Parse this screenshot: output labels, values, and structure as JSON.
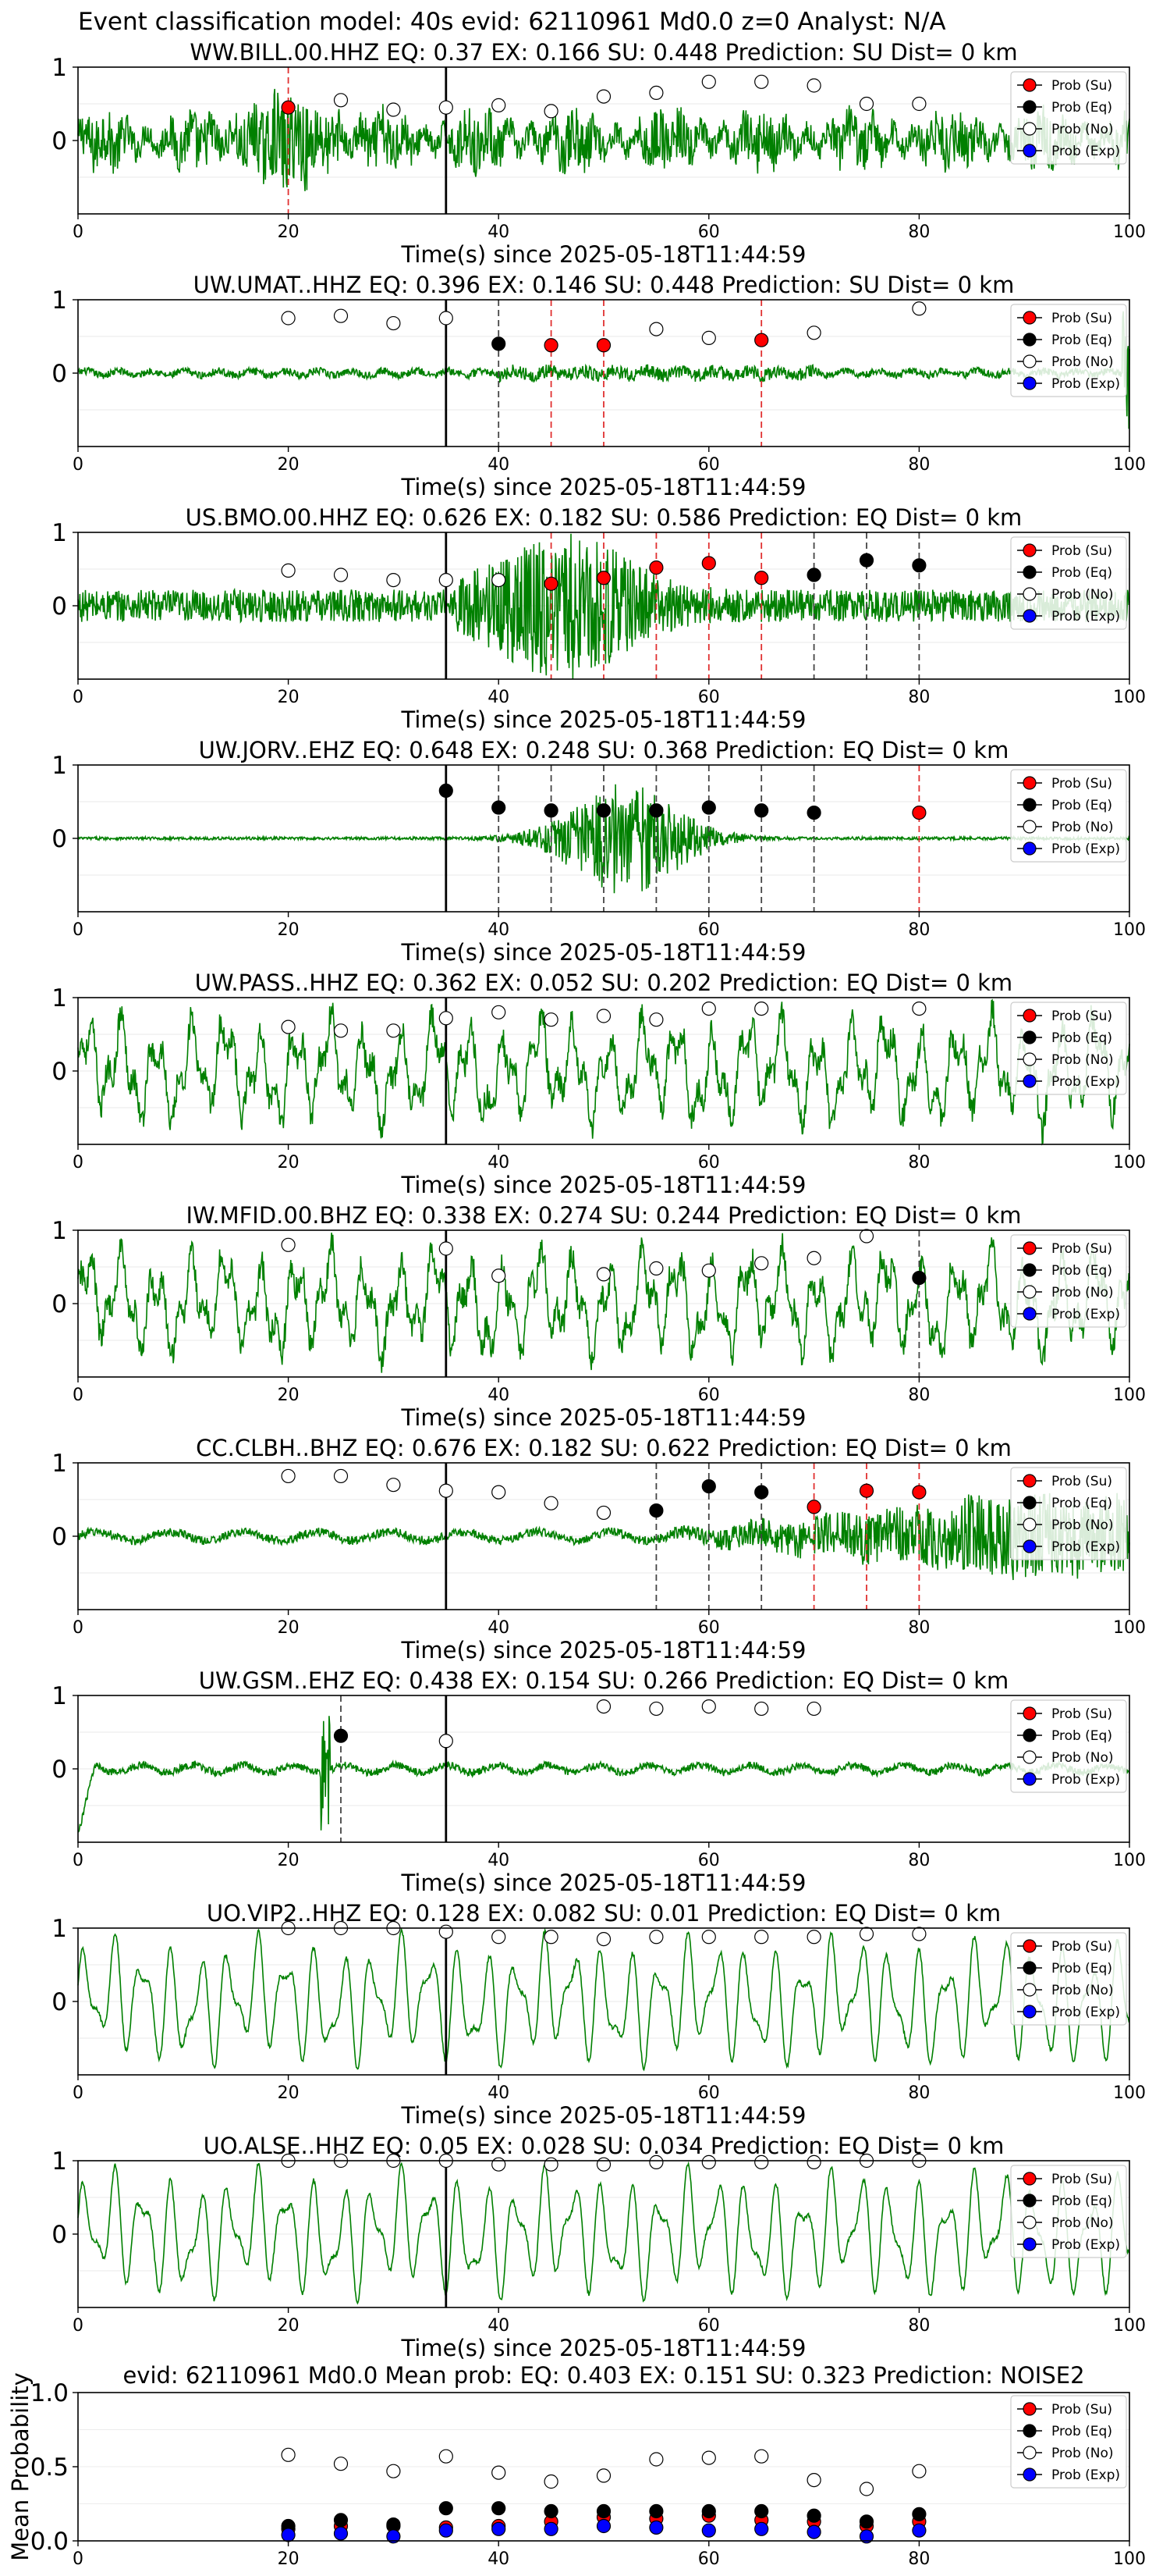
{
  "suptitle": "Event classification model: 40s evid: 62110961 Md0.0 z=0 Analyst: N/A",
  "xlabel": "Time(s) since 2025-05-18T11:44:59",
  "legend": [
    "Prob (Su)",
    "Prob (Eq)",
    "Prob (No)",
    "Prob (Exp)"
  ],
  "colors": {
    "waveform": "#008000",
    "su": "#ff0000",
    "eq": "#000000",
    "no": "#ffffff",
    "exp": "#0000ff"
  },
  "chart_data": [
    {
      "type": "line",
      "title": "WW.BILL.00.HHZ   EQ: 0.37  EX: 0.166  SU: 0.448   Prediction: SU    Dist= 0 km",
      "xlim": [
        0,
        100
      ],
      "ylim": [
        -1,
        1
      ],
      "xticks": [
        0,
        20,
        40,
        60,
        80,
        100
      ],
      "yticks": [
        0,
        1
      ],
      "arrival_x": 35,
      "wave": "noisy",
      "markers": [
        {
          "x": 20,
          "y": 0.45,
          "c": "su"
        },
        {
          "x": 25,
          "y": 0.55,
          "c": "no"
        },
        {
          "x": 30,
          "y": 0.42,
          "c": "no"
        },
        {
          "x": 35,
          "y": 0.45,
          "c": "no"
        },
        {
          "x": 40,
          "y": 0.48,
          "c": "no"
        },
        {
          "x": 45,
          "y": 0.4,
          "c": "no"
        },
        {
          "x": 50,
          "y": 0.6,
          "c": "no"
        },
        {
          "x": 55,
          "y": 0.65,
          "c": "no"
        },
        {
          "x": 60,
          "y": 0.8,
          "c": "no"
        },
        {
          "x": 65,
          "y": 0.8,
          "c": "no"
        },
        {
          "x": 70,
          "y": 0.75,
          "c": "no"
        },
        {
          "x": 75,
          "y": 0.5,
          "c": "no"
        },
        {
          "x": 80,
          "y": 0.5,
          "c": "no"
        }
      ],
      "vlines": [
        {
          "x": 20,
          "c": "su"
        }
      ]
    },
    {
      "type": "line",
      "title": "UW.UMAT..HHZ   EQ: 0.396  EX: 0.146  SU: 0.448   Prediction: SU    Dist= 0 km",
      "xlim": [
        0,
        100
      ],
      "ylim": [
        -1,
        1
      ],
      "xticks": [
        0,
        20,
        40,
        60,
        80,
        100
      ],
      "yticks": [
        0,
        1
      ],
      "arrival_x": 35,
      "wave": "quiet",
      "markers": [
        {
          "x": 20,
          "y": 0.75,
          "c": "no"
        },
        {
          "x": 25,
          "y": 0.78,
          "c": "no"
        },
        {
          "x": 30,
          "y": 0.68,
          "c": "no"
        },
        {
          "x": 35,
          "y": 0.75,
          "c": "no"
        },
        {
          "x": 40,
          "y": 0.4,
          "c": "eq"
        },
        {
          "x": 45,
          "y": 0.38,
          "c": "su"
        },
        {
          "x": 50,
          "y": 0.38,
          "c": "su"
        },
        {
          "x": 55,
          "y": 0.6,
          "c": "no"
        },
        {
          "x": 60,
          "y": 0.48,
          "c": "no"
        },
        {
          "x": 65,
          "y": 0.45,
          "c": "su"
        },
        {
          "x": 70,
          "y": 0.55,
          "c": "no"
        },
        {
          "x": 80,
          "y": 0.88,
          "c": "no"
        }
      ],
      "vlines": [
        {
          "x": 40,
          "c": "eq"
        },
        {
          "x": 45,
          "c": "su"
        },
        {
          "x": 50,
          "c": "su"
        },
        {
          "x": 65,
          "c": "su"
        }
      ]
    },
    {
      "type": "line",
      "title": "US.BMO.00.HHZ   EQ: 0.626  EX: 0.182  SU: 0.586   Prediction: EQ    Dist= 0 km",
      "xlim": [
        0,
        100
      ],
      "ylim": [
        -1,
        1
      ],
      "xticks": [
        0,
        20,
        40,
        60,
        80,
        100
      ],
      "yticks": [
        0,
        1
      ],
      "arrival_x": 35,
      "wave": "event_bmo",
      "markers": [
        {
          "x": 20,
          "y": 0.48,
          "c": "no"
        },
        {
          "x": 25,
          "y": 0.42,
          "c": "no"
        },
        {
          "x": 30,
          "y": 0.35,
          "c": "no"
        },
        {
          "x": 35,
          "y": 0.35,
          "c": "no"
        },
        {
          "x": 40,
          "y": 0.35,
          "c": "no"
        },
        {
          "x": 45,
          "y": 0.3,
          "c": "su"
        },
        {
          "x": 50,
          "y": 0.38,
          "c": "su"
        },
        {
          "x": 55,
          "y": 0.52,
          "c": "su"
        },
        {
          "x": 60,
          "y": 0.58,
          "c": "su"
        },
        {
          "x": 65,
          "y": 0.38,
          "c": "su"
        },
        {
          "x": 70,
          "y": 0.42,
          "c": "eq"
        },
        {
          "x": 75,
          "y": 0.62,
          "c": "eq"
        },
        {
          "x": 80,
          "y": 0.55,
          "c": "eq"
        }
      ],
      "vlines": [
        {
          "x": 45,
          "c": "su"
        },
        {
          "x": 50,
          "c": "su"
        },
        {
          "x": 55,
          "c": "su"
        },
        {
          "x": 60,
          "c": "su"
        },
        {
          "x": 65,
          "c": "su"
        },
        {
          "x": 70,
          "c": "eq"
        },
        {
          "x": 75,
          "c": "eq"
        },
        {
          "x": 80,
          "c": "eq"
        }
      ]
    },
    {
      "type": "line",
      "title": "UW.JORV..EHZ   EQ: 0.648  EX: 0.248  SU: 0.368   Prediction: EQ    Dist= 0 km",
      "xlim": [
        0,
        100
      ],
      "ylim": [
        -1,
        1
      ],
      "xticks": [
        0,
        20,
        40,
        60,
        80,
        100
      ],
      "yticks": [
        0,
        1
      ],
      "arrival_x": 35,
      "wave": "event_jorv",
      "markers": [
        {
          "x": 35,
          "y": 0.65,
          "c": "eq"
        },
        {
          "x": 40,
          "y": 0.42,
          "c": "eq"
        },
        {
          "x": 45,
          "y": 0.38,
          "c": "eq"
        },
        {
          "x": 50,
          "y": 0.38,
          "c": "eq"
        },
        {
          "x": 55,
          "y": 0.38,
          "c": "eq"
        },
        {
          "x": 60,
          "y": 0.42,
          "c": "eq"
        },
        {
          "x": 65,
          "y": 0.38,
          "c": "eq"
        },
        {
          "x": 70,
          "y": 0.35,
          "c": "eq"
        },
        {
          "x": 80,
          "y": 0.35,
          "c": "su"
        }
      ],
      "vlines": [
        {
          "x": 40,
          "c": "eq"
        },
        {
          "x": 45,
          "c": "eq"
        },
        {
          "x": 50,
          "c": "eq"
        },
        {
          "x": 55,
          "c": "eq"
        },
        {
          "x": 60,
          "c": "eq"
        },
        {
          "x": 65,
          "c": "eq"
        },
        {
          "x": 70,
          "c": "eq"
        },
        {
          "x": 80,
          "c": "su"
        }
      ]
    },
    {
      "type": "line",
      "title": "UW.PASS..HHZ   EQ: 0.362  EX: 0.052  SU: 0.202   Prediction: EQ    Dist= 0 km",
      "xlim": [
        0,
        100
      ],
      "ylim": [
        -1,
        1
      ],
      "xticks": [
        0,
        20,
        40,
        60,
        80,
        100
      ],
      "yticks": [
        0,
        1
      ],
      "arrival_x": 35,
      "wave": "wavy",
      "markers": [
        {
          "x": 20,
          "y": 0.6,
          "c": "no"
        },
        {
          "x": 25,
          "y": 0.55,
          "c": "no"
        },
        {
          "x": 30,
          "y": 0.55,
          "c": "no"
        },
        {
          "x": 35,
          "y": 0.72,
          "c": "no"
        },
        {
          "x": 40,
          "y": 0.8,
          "c": "no"
        },
        {
          "x": 45,
          "y": 0.7,
          "c": "no"
        },
        {
          "x": 50,
          "y": 0.75,
          "c": "no"
        },
        {
          "x": 55,
          "y": 0.7,
          "c": "no"
        },
        {
          "x": 60,
          "y": 0.85,
          "c": "no"
        },
        {
          "x": 65,
          "y": 0.85,
          "c": "no"
        },
        {
          "x": 80,
          "y": 0.85,
          "c": "no"
        }
      ],
      "vlines": []
    },
    {
      "type": "line",
      "title": "IW.MFID.00.BHZ   EQ: 0.338  EX: 0.274  SU: 0.244   Prediction: EQ    Dist= 0 km",
      "xlim": [
        0,
        100
      ],
      "ylim": [
        -1,
        1
      ],
      "xticks": [
        0,
        20,
        40,
        60,
        80,
        100
      ],
      "yticks": [
        0,
        1
      ],
      "arrival_x": 35,
      "wave": "wavy",
      "markers": [
        {
          "x": 20,
          "y": 0.8,
          "c": "no"
        },
        {
          "x": 35,
          "y": 0.75,
          "c": "no"
        },
        {
          "x": 40,
          "y": 0.38,
          "c": "no"
        },
        {
          "x": 50,
          "y": 0.4,
          "c": "no"
        },
        {
          "x": 55,
          "y": 0.48,
          "c": "no"
        },
        {
          "x": 60,
          "y": 0.45,
          "c": "no"
        },
        {
          "x": 65,
          "y": 0.55,
          "c": "no"
        },
        {
          "x": 70,
          "y": 0.62,
          "c": "no"
        },
        {
          "x": 75,
          "y": 0.92,
          "c": "no"
        },
        {
          "x": 80,
          "y": 0.35,
          "c": "eq"
        }
      ],
      "vlines": [
        {
          "x": 80,
          "c": "eq"
        }
      ]
    },
    {
      "type": "line",
      "title": "CC.CLBH..BHZ   EQ: 0.676  EX: 0.182  SU: 0.622   Prediction: EQ    Dist= 0 km",
      "xlim": [
        0,
        100
      ],
      "ylim": [
        -1,
        1
      ],
      "xticks": [
        0,
        20,
        40,
        60,
        80,
        100
      ],
      "yticks": [
        0,
        1
      ],
      "arrival_x": 35,
      "wave": "event_clbh",
      "markers": [
        {
          "x": 20,
          "y": 0.82,
          "c": "no"
        },
        {
          "x": 25,
          "y": 0.82,
          "c": "no"
        },
        {
          "x": 30,
          "y": 0.7,
          "c": "no"
        },
        {
          "x": 35,
          "y": 0.62,
          "c": "no"
        },
        {
          "x": 40,
          "y": 0.6,
          "c": "no"
        },
        {
          "x": 45,
          "y": 0.45,
          "c": "no"
        },
        {
          "x": 50,
          "y": 0.32,
          "c": "no"
        },
        {
          "x": 55,
          "y": 0.35,
          "c": "eq"
        },
        {
          "x": 60,
          "y": 0.68,
          "c": "eq"
        },
        {
          "x": 65,
          "y": 0.6,
          "c": "eq"
        },
        {
          "x": 70,
          "y": 0.4,
          "c": "su"
        },
        {
          "x": 75,
          "y": 0.62,
          "c": "su"
        },
        {
          "x": 80,
          "y": 0.6,
          "c": "su"
        }
      ],
      "vlines": [
        {
          "x": 55,
          "c": "eq"
        },
        {
          "x": 60,
          "c": "eq"
        },
        {
          "x": 65,
          "c": "eq"
        },
        {
          "x": 70,
          "c": "su"
        },
        {
          "x": 75,
          "c": "su"
        },
        {
          "x": 80,
          "c": "su"
        }
      ]
    },
    {
      "type": "line",
      "title": "UW.GSM..EHZ   EQ: 0.438  EX: 0.154  SU: 0.266   Prediction: EQ    Dist= 0 km",
      "xlim": [
        0,
        100
      ],
      "ylim": [
        -1,
        1
      ],
      "xticks": [
        0,
        20,
        40,
        60,
        80,
        100
      ],
      "yticks": [
        0,
        1
      ],
      "arrival_x": 35,
      "wave": "quiet_gsm",
      "markers": [
        {
          "x": 25,
          "y": 0.45,
          "c": "eq"
        },
        {
          "x": 35,
          "y": 0.38,
          "c": "no"
        },
        {
          "x": 50,
          "y": 0.85,
          "c": "no"
        },
        {
          "x": 55,
          "y": 0.82,
          "c": "no"
        },
        {
          "x": 60,
          "y": 0.85,
          "c": "no"
        },
        {
          "x": 65,
          "y": 0.82,
          "c": "no"
        },
        {
          "x": 70,
          "y": 0.82,
          "c": "no"
        }
      ],
      "vlines": [
        {
          "x": 25,
          "c": "eq"
        }
      ]
    },
    {
      "type": "line",
      "title": "UO.VIP2..HHZ   EQ: 0.128  EX: 0.082  SU: 0.01   Prediction: EQ    Dist= 0 km",
      "xlim": [
        0,
        100
      ],
      "ylim": [
        -1,
        1
      ],
      "xticks": [
        0,
        20,
        40,
        60,
        80,
        100
      ],
      "yticks": [
        0,
        1
      ],
      "arrival_x": 35,
      "wave": "smooth",
      "markers": [
        {
          "x": 20,
          "y": 1.0,
          "c": "no"
        },
        {
          "x": 25,
          "y": 1.0,
          "c": "no"
        },
        {
          "x": 30,
          "y": 1.0,
          "c": "no"
        },
        {
          "x": 35,
          "y": 0.95,
          "c": "no"
        },
        {
          "x": 40,
          "y": 0.88,
          "c": "no"
        },
        {
          "x": 45,
          "y": 0.88,
          "c": "no"
        },
        {
          "x": 50,
          "y": 0.85,
          "c": "no"
        },
        {
          "x": 55,
          "y": 0.88,
          "c": "no"
        },
        {
          "x": 60,
          "y": 0.88,
          "c": "no"
        },
        {
          "x": 65,
          "y": 0.88,
          "c": "no"
        },
        {
          "x": 70,
          "y": 0.88,
          "c": "no"
        },
        {
          "x": 75,
          "y": 0.92,
          "c": "no"
        },
        {
          "x": 80,
          "y": 0.92,
          "c": "no"
        }
      ],
      "vlines": []
    },
    {
      "type": "line",
      "title": "UO.ALSE..HHZ   EQ: 0.05  EX: 0.028  SU: 0.034   Prediction: EQ    Dist= 0 km",
      "xlim": [
        0,
        100
      ],
      "ylim": [
        -1,
        1
      ],
      "xticks": [
        0,
        20,
        40,
        60,
        80,
        100
      ],
      "yticks": [
        0,
        1
      ],
      "arrival_x": 35,
      "wave": "smooth",
      "markers": [
        {
          "x": 20,
          "y": 1.0,
          "c": "no"
        },
        {
          "x": 25,
          "y": 1.0,
          "c": "no"
        },
        {
          "x": 30,
          "y": 1.0,
          "c": "no"
        },
        {
          "x": 35,
          "y": 1.0,
          "c": "no"
        },
        {
          "x": 40,
          "y": 0.95,
          "c": "no"
        },
        {
          "x": 45,
          "y": 0.95,
          "c": "no"
        },
        {
          "x": 50,
          "y": 0.95,
          "c": "no"
        },
        {
          "x": 55,
          "y": 0.98,
          "c": "no"
        },
        {
          "x": 60,
          "y": 0.98,
          "c": "no"
        },
        {
          "x": 65,
          "y": 0.98,
          "c": "no"
        },
        {
          "x": 70,
          "y": 0.98,
          "c": "no"
        },
        {
          "x": 75,
          "y": 1.0,
          "c": "no"
        },
        {
          "x": 80,
          "y": 1.0,
          "c": "no"
        }
      ],
      "vlines": []
    }
  ],
  "mean_chart": {
    "type": "scatter",
    "title": "evid: 62110961  Md0.0   Mean prob:   EQ: 0.403  EX: 0.151  SU: 0.323   Prediction: NOISE2",
    "ylabel": "Mean Probability",
    "xlim": [
      0,
      100
    ],
    "ylim": [
      0,
      1
    ],
    "xticks": [
      0,
      20,
      40,
      60,
      80,
      100
    ],
    "yticks": [
      0.0,
      0.5,
      1.0
    ],
    "ytick_labels": [
      "0.0",
      "0.5",
      "1.0"
    ],
    "x": [
      20,
      25,
      30,
      35,
      40,
      45,
      50,
      55,
      60,
      65,
      70,
      75,
      80
    ],
    "series": [
      {
        "key": "no",
        "values": [
          0.58,
          0.52,
          0.47,
          0.57,
          0.46,
          0.4,
          0.44,
          0.55,
          0.56,
          0.57,
          0.41,
          0.35,
          0.47
        ]
      },
      {
        "key": "su",
        "values": [
          0.08,
          0.1,
          0.1,
          0.09,
          0.1,
          0.13,
          0.16,
          0.15,
          0.17,
          0.14,
          0.13,
          0.1,
          0.13
        ]
      },
      {
        "key": "eq",
        "values": [
          0.1,
          0.14,
          0.11,
          0.22,
          0.22,
          0.2,
          0.2,
          0.2,
          0.2,
          0.2,
          0.17,
          0.13,
          0.18
        ]
      },
      {
        "key": "exp",
        "values": [
          0.04,
          0.05,
          0.03,
          0.07,
          0.08,
          0.08,
          0.1,
          0.09,
          0.07,
          0.08,
          0.06,
          0.03,
          0.07
        ]
      }
    ]
  }
}
